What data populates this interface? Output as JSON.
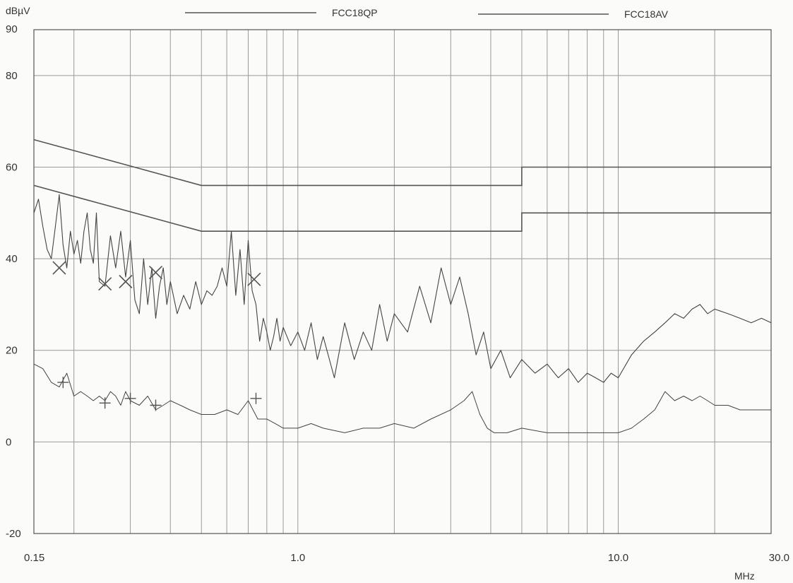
{
  "chart_data": {
    "type": "line",
    "title": "",
    "ylabel": "dBµV",
    "xlabel": "MHz",
    "x_scale": "log",
    "xlim": [
      0.15,
      30.0
    ],
    "ylim": [
      -20,
      90
    ],
    "grid": true,
    "x_ticks": [
      {
        "value": 0.15,
        "label": "0.15"
      },
      {
        "value": 1.0,
        "label": "1.0"
      },
      {
        "value": 10.0,
        "label": "10.0"
      },
      {
        "value": 30.0,
        "label": "30.0"
      }
    ],
    "y_ticks": [
      -20,
      0,
      20,
      40,
      60,
      80,
      90
    ],
    "legend": {
      "placement": "top",
      "entries": [
        "FCC18QP",
        "FCC18AV"
      ]
    },
    "limit_lines": [
      {
        "name": "FCC18QP",
        "x": [
          0.15,
          0.5,
          0.5,
          5.0,
          5.0,
          30.0
        ],
        "y": [
          66,
          56,
          56,
          56,
          60,
          60
        ]
      },
      {
        "name": "FCC18AV",
        "x": [
          0.15,
          0.5,
          0.5,
          5.0,
          5.0,
          30.0
        ],
        "y": [
          56,
          46,
          46,
          46,
          50,
          50
        ]
      }
    ],
    "series": [
      {
        "style": "peak-trace",
        "x": [
          0.15,
          0.155,
          0.16,
          0.165,
          0.17,
          0.175,
          0.18,
          0.185,
          0.19,
          0.195,
          0.2,
          0.205,
          0.21,
          0.215,
          0.22,
          0.225,
          0.23,
          0.235,
          0.24,
          0.25,
          0.26,
          0.27,
          0.28,
          0.29,
          0.3,
          0.31,
          0.32,
          0.33,
          0.34,
          0.35,
          0.36,
          0.37,
          0.38,
          0.39,
          0.4,
          0.42,
          0.44,
          0.46,
          0.48,
          0.5,
          0.52,
          0.54,
          0.56,
          0.58,
          0.6,
          0.62,
          0.64,
          0.66,
          0.68,
          0.7,
          0.72,
          0.74,
          0.76,
          0.78,
          0.8,
          0.82,
          0.84,
          0.86,
          0.88,
          0.9,
          0.95,
          1.0,
          1.05,
          1.1,
          1.15,
          1.2,
          1.3,
          1.4,
          1.5,
          1.6,
          1.7,
          1.8,
          1.9,
          2.0,
          2.2,
          2.4,
          2.6,
          2.8,
          3.0,
          3.2,
          3.4,
          3.6,
          3.8,
          4.0,
          4.3,
          4.6,
          5.0,
          5.5,
          6.0,
          6.5,
          7.0,
          7.5,
          8.0,
          8.5,
          9.0,
          9.5,
          10.0,
          11.0,
          12.0,
          13.0,
          14.0,
          15.0,
          16.0,
          17.0,
          18.0,
          19.0,
          20.0,
          22.0,
          24.0,
          26.0,
          28.0,
          30.0
        ],
        "y": [
          50,
          53,
          47,
          42,
          40,
          47,
          54,
          43,
          38,
          46,
          41,
          44,
          39,
          46,
          50,
          42,
          39,
          50,
          35,
          34,
          45,
          38,
          46,
          36,
          44,
          31,
          28,
          40,
          30,
          38,
          27,
          34,
          38,
          30,
          35,
          28,
          32,
          29,
          35,
          30,
          33,
          32,
          34,
          38,
          34,
          46,
          32,
          42,
          30,
          44,
          33,
          30,
          22,
          27,
          24,
          20,
          23,
          27,
          22,
          25,
          21,
          24,
          20,
          26,
          18,
          23,
          14,
          26,
          18,
          24,
          20,
          30,
          22,
          28,
          24,
          34,
          26,
          38,
          30,
          36,
          28,
          19,
          24,
          16,
          20,
          14,
          18,
          15,
          17,
          14,
          16,
          13,
          15,
          14,
          13,
          15,
          14,
          19,
          22,
          24,
          26,
          28,
          27,
          29,
          30,
          28,
          29,
          28,
          27,
          26,
          27,
          26
        ]
      },
      {
        "style": "average-trace",
        "x": [
          0.15,
          0.16,
          0.17,
          0.18,
          0.19,
          0.2,
          0.21,
          0.22,
          0.23,
          0.24,
          0.25,
          0.26,
          0.27,
          0.28,
          0.29,
          0.3,
          0.32,
          0.34,
          0.36,
          0.38,
          0.4,
          0.43,
          0.46,
          0.5,
          0.55,
          0.6,
          0.65,
          0.7,
          0.75,
          0.8,
          0.85,
          0.9,
          1.0,
          1.1,
          1.2,
          1.4,
          1.6,
          1.8,
          2.0,
          2.3,
          2.6,
          3.0,
          3.3,
          3.5,
          3.7,
          3.9,
          4.1,
          4.5,
          5.0,
          6.0,
          7.0,
          8.0,
          9.0,
          10.0,
          11.0,
          12.0,
          13.0,
          14.0,
          15.0,
          16.0,
          17.0,
          18.0,
          19.0,
          20.0,
          22.0,
          24.0,
          26.0,
          28.0,
          30.0
        ],
        "y": [
          17,
          16,
          13,
          12,
          15,
          10,
          11,
          10,
          9,
          10,
          9,
          11,
          10,
          8,
          11,
          9,
          8,
          10,
          7,
          8,
          9,
          8,
          7,
          6,
          6,
          7,
          6,
          9,
          5,
          5,
          4,
          3,
          3,
          4,
          3,
          2,
          3,
          3,
          4,
          3,
          5,
          7,
          9,
          11,
          6,
          3,
          2,
          2,
          3,
          2,
          2,
          2,
          2,
          2,
          3,
          5,
          7,
          11,
          9,
          10,
          9,
          10,
          9,
          8,
          8,
          7,
          7,
          7,
          7
        ]
      }
    ],
    "qp_markers": {
      "symbol": "×",
      "x": [
        0.18,
        0.25,
        0.29,
        0.36,
        0.73
      ],
      "y": [
        38,
        34.5,
        35,
        37,
        35.5
      ]
    },
    "av_markers": {
      "symbol": "+",
      "x": [
        0.185,
        0.25,
        0.3,
        0.36,
        0.74
      ],
      "y": [
        13,
        8.5,
        9.5,
        8,
        9.5
      ]
    },
    "colors": {
      "grid": "#9a9a9a",
      "axis": "#555555",
      "trace": "#444444",
      "limit": "#555555",
      "marker": "#555555"
    }
  }
}
